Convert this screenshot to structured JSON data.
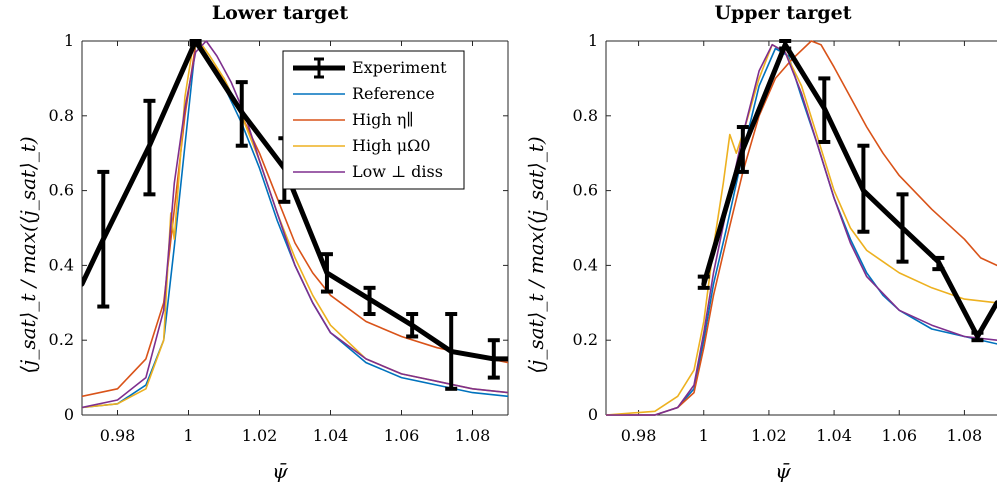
{
  "chart_data": [
    {
      "type": "line",
      "title": "Lower target",
      "xlabel": "ψ̄",
      "ylabel": "⟨j_sat⟩_t / max(⟨j_sat⟩_t)",
      "xlim": [
        0.97,
        1.09
      ],
      "ylim": [
        0,
        1
      ],
      "xticks": [
        "0.98",
        "1",
        "1.02",
        "1.04",
        "1.06",
        "1.08"
      ],
      "yticks": [
        "0",
        "0.2",
        "0.4",
        "0.6",
        "0.8",
        "1"
      ],
      "grid": false,
      "legend": {
        "placement": "top-right",
        "entries": [
          "Experiment",
          "Reference",
          "High η∥",
          "High μΩ0",
          "Low ⊥ diss"
        ]
      },
      "series": [
        {
          "name": "Experiment",
          "color": "#000000",
          "x": [
            0.97,
            0.976,
            0.989,
            1.002,
            1.015,
            1.027,
            1.039,
            1.051,
            1.063,
            1.074,
            1.086,
            1.09
          ],
          "y": [
            0.35,
            0.47,
            0.72,
            1.0,
            0.81,
            0.66,
            0.38,
            0.31,
            0.24,
            0.17,
            0.15,
            0.15
          ],
          "errorbars": [
            {
              "x": 0.976,
              "lo": 0.29,
              "hi": 0.65
            },
            {
              "x": 0.989,
              "lo": 0.59,
              "hi": 0.84
            },
            {
              "x": 1.002,
              "lo": 0.99,
              "hi": 1.0
            },
            {
              "x": 1.015,
              "lo": 0.72,
              "hi": 0.89
            },
            {
              "x": 1.027,
              "lo": 0.57,
              "hi": 0.74
            },
            {
              "x": 1.039,
              "lo": 0.33,
              "hi": 0.43
            },
            {
              "x": 1.051,
              "lo": 0.27,
              "hi": 0.34
            },
            {
              "x": 1.063,
              "lo": 0.21,
              "hi": 0.27
            },
            {
              "x": 1.074,
              "lo": 0.07,
              "hi": 0.27
            },
            {
              "x": 1.086,
              "lo": 0.1,
              "hi": 0.2
            }
          ]
        },
        {
          "name": "Reference",
          "color": "#0072BD",
          "x": [
            0.97,
            0.98,
            0.988,
            0.993,
            0.996,
            0.999,
            1.002,
            1.005,
            1.01,
            1.015,
            1.02,
            1.025,
            1.03,
            1.035,
            1.04,
            1.05,
            1.06,
            1.07,
            1.08,
            1.09
          ],
          "y": [
            0.02,
            0.03,
            0.08,
            0.2,
            0.45,
            0.72,
            0.99,
            0.95,
            0.88,
            0.78,
            0.66,
            0.52,
            0.4,
            0.3,
            0.22,
            0.14,
            0.1,
            0.08,
            0.06,
            0.05
          ]
        },
        {
          "name": "High η∥",
          "color": "#D95319",
          "x": [
            0.97,
            0.98,
            0.988,
            0.993,
            0.996,
            0.999,
            1.002,
            1.005,
            1.01,
            1.015,
            1.02,
            1.025,
            1.03,
            1.035,
            1.04,
            1.05,
            1.06,
            1.07,
            1.08,
            1.09
          ],
          "y": [
            0.05,
            0.07,
            0.15,
            0.3,
            0.55,
            0.8,
            0.99,
            0.96,
            0.9,
            0.8,
            0.7,
            0.58,
            0.46,
            0.38,
            0.32,
            0.25,
            0.21,
            0.18,
            0.16,
            0.14
          ]
        },
        {
          "name": "High μΩ0",
          "color": "#EDB120",
          "x": [
            0.97,
            0.98,
            0.988,
            0.993,
            0.995,
            0.996,
            0.997,
            0.999,
            1.001,
            1.003,
            1.006,
            1.01,
            1.015,
            1.02,
            1.025,
            1.03,
            1.035,
            1.04,
            1.05,
            1.06,
            1.07,
            1.08,
            1.09
          ],
          "y": [
            0.02,
            0.03,
            0.07,
            0.2,
            0.54,
            0.47,
            0.6,
            0.85,
            0.97,
            1.0,
            0.96,
            0.9,
            0.8,
            0.68,
            0.54,
            0.42,
            0.32,
            0.24,
            0.15,
            0.11,
            0.09,
            0.07,
            0.06
          ]
        },
        {
          "name": "Low ⊥ diss",
          "color": "#7E2F8E",
          "x": [
            0.97,
            0.98,
            0.988,
            0.993,
            0.996,
            0.999,
            1.002,
            1.005,
            1.008,
            1.012,
            1.016,
            1.02,
            1.025,
            1.03,
            1.035,
            1.04,
            1.05,
            1.06,
            1.07,
            1.08,
            1.09
          ],
          "y": [
            0.02,
            0.04,
            0.1,
            0.28,
            0.62,
            0.82,
            0.97,
            1.0,
            0.96,
            0.89,
            0.8,
            0.68,
            0.54,
            0.4,
            0.3,
            0.22,
            0.15,
            0.11,
            0.09,
            0.07,
            0.06
          ]
        }
      ]
    },
    {
      "type": "line",
      "title": "Upper target",
      "xlabel": "ψ̄",
      "ylabel": "⟨j_sat⟩_t / max(⟨j_sat⟩_t)",
      "xlim": [
        0.97,
        1.09
      ],
      "ylim": [
        0,
        1
      ],
      "xticks": [
        "0.98",
        "1",
        "1.02",
        "1.04",
        "1.06",
        "1.08"
      ],
      "yticks": [
        "0",
        "0.2",
        "0.4",
        "0.6",
        "0.8",
        "1"
      ],
      "grid": false,
      "series": [
        {
          "name": "Experiment",
          "color": "#000000",
          "x": [
            1.0,
            1.012,
            1.025,
            1.037,
            1.049,
            1.061,
            1.072,
            1.084,
            1.09
          ],
          "y": [
            0.35,
            0.71,
            0.99,
            0.82,
            0.6,
            0.5,
            0.41,
            0.21,
            0.3
          ],
          "errorbars": [
            {
              "x": 1.0,
              "lo": 0.34,
              "hi": 0.37
            },
            {
              "x": 1.012,
              "lo": 0.65,
              "hi": 0.77
            },
            {
              "x": 1.025,
              "lo": 0.98,
              "hi": 1.0
            },
            {
              "x": 1.037,
              "lo": 0.73,
              "hi": 0.9
            },
            {
              "x": 1.049,
              "lo": 0.49,
              "hi": 0.72
            },
            {
              "x": 1.061,
              "lo": 0.41,
              "hi": 0.59
            },
            {
              "x": 1.072,
              "lo": 0.39,
              "hi": 0.42
            },
            {
              "x": 1.084,
              "lo": 0.2,
              "hi": 0.22
            }
          ]
        },
        {
          "name": "Reference",
          "color": "#0072BD",
          "x": [
            0.97,
            0.985,
            0.992,
            0.997,
            1.0,
            1.003,
            1.007,
            1.012,
            1.017,
            1.022,
            1.026,
            1.03,
            1.035,
            1.04,
            1.045,
            1.05,
            1.055,
            1.06,
            1.07,
            1.08,
            1.09
          ],
          "y": [
            0.0,
            0.0,
            0.02,
            0.07,
            0.2,
            0.35,
            0.5,
            0.7,
            0.88,
            0.98,
            0.96,
            0.85,
            0.72,
            0.58,
            0.47,
            0.38,
            0.32,
            0.28,
            0.23,
            0.21,
            0.19
          ]
        },
        {
          "name": "High η∥",
          "color": "#D95319",
          "x": [
            0.97,
            0.985,
            0.992,
            0.997,
            1.0,
            1.003,
            1.007,
            1.012,
            1.017,
            1.022,
            1.027,
            1.033,
            1.036,
            1.04,
            1.045,
            1.05,
            1.055,
            1.06,
            1.07,
            1.08,
            1.085,
            1.09
          ],
          "y": [
            0.0,
            0.0,
            0.02,
            0.06,
            0.18,
            0.32,
            0.47,
            0.65,
            0.8,
            0.9,
            0.95,
            1.0,
            0.99,
            0.93,
            0.85,
            0.77,
            0.7,
            0.64,
            0.55,
            0.47,
            0.42,
            0.4
          ]
        },
        {
          "name": "High μΩ0",
          "color": "#EDB120",
          "x": [
            0.97,
            0.985,
            0.992,
            0.997,
            1.0,
            1.003,
            1.006,
            1.008,
            1.01,
            1.013,
            1.017,
            1.021,
            1.025,
            1.03,
            1.035,
            1.04,
            1.045,
            1.05,
            1.06,
            1.07,
            1.08,
            1.09
          ],
          "y": [
            0.0,
            0.01,
            0.05,
            0.12,
            0.25,
            0.45,
            0.62,
            0.75,
            0.7,
            0.78,
            0.9,
            0.99,
            0.97,
            0.88,
            0.74,
            0.6,
            0.5,
            0.44,
            0.38,
            0.34,
            0.31,
            0.3
          ]
        },
        {
          "name": "Low ⊥ diss",
          "color": "#7E2F8E",
          "x": [
            0.97,
            0.985,
            0.992,
            0.997,
            1.0,
            1.003,
            1.007,
            1.012,
            1.017,
            1.021,
            1.025,
            1.03,
            1.035,
            1.04,
            1.045,
            1.05,
            1.06,
            1.07,
            1.08,
            1.09
          ],
          "y": [
            0.0,
            0.0,
            0.02,
            0.08,
            0.22,
            0.38,
            0.55,
            0.75,
            0.92,
            0.99,
            0.97,
            0.86,
            0.72,
            0.58,
            0.46,
            0.37,
            0.28,
            0.24,
            0.21,
            0.2
          ]
        }
      ]
    }
  ]
}
